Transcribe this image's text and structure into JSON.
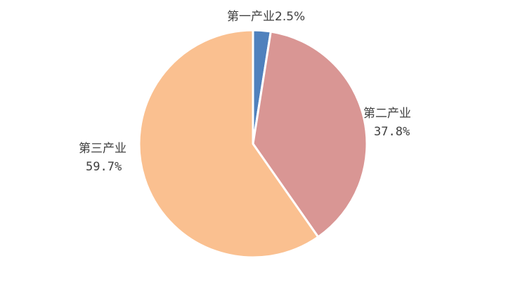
{
  "chart_data": {
    "type": "pie",
    "title": "",
    "slices": [
      {
        "label": "第一产业",
        "value": 2.5,
        "value_text": "2.5%",
        "color": "#4F81BD"
      },
      {
        "label": "第二产业",
        "value": 37.8,
        "value_text": "37.8%",
        "color": "#D99694"
      },
      {
        "label": "第三产业",
        "value": 59.7,
        "value_text": "59.7%",
        "color": "#FAC090"
      }
    ],
    "start_angle": "12 o'clock",
    "direction": "clockwise",
    "legend": "none",
    "slice_border_color": "#FFFFFF"
  }
}
